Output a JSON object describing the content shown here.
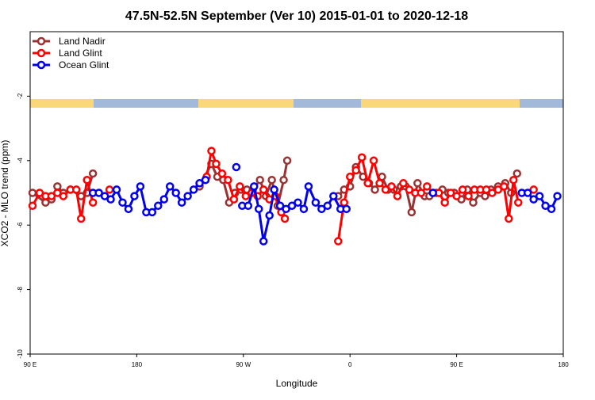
{
  "chart_data": {
    "type": "line",
    "title": "47.5N-52.5N September (Ver 10)   2015-01-01 to 2020-12-18",
    "x_label": "Longitude",
    "y_label": "XCO2 - MLO trend (ppm)",
    "xlim": [
      90,
      540
    ],
    "xticks": [
      {
        "value": 90,
        "label": "90 E"
      },
      {
        "value": 180,
        "label": "180"
      },
      {
        "value": 270,
        "label": "90 W"
      },
      {
        "value": 360,
        "label": "0"
      },
      {
        "value": 450,
        "label": "90 E"
      },
      {
        "value": 540,
        "label": "180"
      }
    ],
    "ylim": [
      -10,
      0
    ],
    "yticks": [
      -2,
      -4,
      -6,
      -8,
      -10
    ],
    "legend": "top-left",
    "series": [
      {
        "name": "Land Nadir",
        "color": "#993333",
        "x": [
          92,
          103,
          108,
          113,
          118,
          124,
          133,
          138,
          143,
          null,
          233,
          243,
          248,
          253,
          258,
          263,
          268,
          273,
          278,
          284,
          289,
          294,
          299,
          304,
          307,
          null,
          350,
          355,
          360,
          365,
          371,
          376,
          381,
          387,
          392,
          397,
          403,
          407,
          412,
          417,
          423,
          427,
          433,
          438,
          443,
          448,
          454,
          459,
          464,
          470,
          474,
          479,
          485,
          491,
          496,
          501
        ],
        "values": [
          -5.0,
          -5.3,
          -5.2,
          -4.8,
          -5.0,
          -4.9,
          -5.1,
          -5.0,
          -4.4,
          null,
          -4.8,
          -4.1,
          -4.5,
          -4.6,
          -5.3,
          -5.0,
          -4.9,
          -4.9,
          -4.9,
          -4.6,
          -5.1,
          -4.6,
          -5.4,
          -4.6,
          -4.0,
          null,
          -5.1,
          -4.9,
          -4.8,
          -4.2,
          -4.5,
          -4.7,
          -4.9,
          -4.5,
          -4.9,
          -4.9,
          -4.8,
          -4.8,
          -5.6,
          -4.7,
          -5.1,
          -5.1,
          -5.0,
          -4.9,
          -5.0,
          -5.0,
          -5.2,
          -4.9,
          -5.3,
          -5.0,
          -5.1,
          -4.9,
          -4.8,
          -4.7,
          -5.0,
          -4.4
        ]
      },
      {
        "name": "Land Glint",
        "color": "#ff0000",
        "x": [
          92,
          98,
          103,
          108,
          113,
          118,
          124,
          129,
          133,
          138,
          143,
          null,
          157,
          null,
          239,
          243,
          247,
          252,
          257,
          262,
          267,
          272,
          277,
          282,
          287,
          292,
          297,
          302,
          305,
          null,
          350,
          355,
          360,
          365,
          370,
          375,
          380,
          385,
          390,
          395,
          400,
          405,
          410,
          415,
          420,
          425,
          430,
          435,
          440,
          445,
          450,
          455,
          460,
          465,
          470,
          475,
          480,
          485,
          490,
          494,
          498,
          502,
          null,
          515
        ],
        "values": [
          -5.4,
          -5.0,
          -5.1,
          -5.1,
          -5.0,
          -5.1,
          -4.9,
          -4.9,
          -5.8,
          -4.6,
          -5.3,
          null,
          -4.9,
          null,
          -4.5,
          -3.7,
          -4.1,
          -4.4,
          -4.6,
          -5.2,
          -4.8,
          -5.1,
          -5.0,
          -5.1,
          -4.9,
          -5.2,
          -5.1,
          -5.6,
          -5.8,
          null,
          -6.5,
          -5.3,
          -4.5,
          -4.3,
          -3.9,
          -4.7,
          -4.0,
          -4.7,
          -4.9,
          -4.8,
          -5.1,
          -4.7,
          -4.9,
          -5.0,
          -5.0,
          -4.8,
          -5.0,
          -5.0,
          -5.3,
          -5.0,
          -5.1,
          -4.9,
          -5.1,
          -4.9,
          -4.9,
          -4.9,
          -5.0,
          -4.9,
          -4.8,
          -5.8,
          -4.6,
          -5.3,
          null,
          -4.9
        ]
      },
      {
        "name": "Ocean Glint",
        "color": "#0000ee",
        "x": [
          143,
          148,
          153,
          158,
          163,
          168,
          173,
          178,
          183,
          188,
          193,
          198,
          203,
          208,
          213,
          218,
          223,
          228,
          233,
          238,
          null,
          264,
          null,
          269,
          274,
          279,
          283,
          287,
          292,
          296,
          301,
          306,
          311,
          316,
          321,
          325,
          331,
          336,
          341,
          346,
          352,
          357,
          null,
          430,
          null,
          505,
          510,
          515,
          520,
          525,
          530,
          535
        ],
        "values": [
          -5.0,
          -5.0,
          -5.1,
          -5.2,
          -4.9,
          -5.3,
          -5.5,
          -5.1,
          -4.8,
          -5.6,
          -5.6,
          -5.4,
          -5.2,
          -4.8,
          -5.0,
          -5.3,
          -5.1,
          -4.9,
          -4.7,
          -4.6,
          null,
          -4.2,
          null,
          -5.4,
          -5.4,
          -4.8,
          -5.5,
          -6.5,
          -5.7,
          -4.9,
          -5.4,
          -5.5,
          -5.4,
          -5.3,
          -5.5,
          -4.8,
          -5.3,
          -5.5,
          -5.4,
          -5.1,
          -5.5,
          -5.5,
          null,
          -5.0,
          null,
          -5.0,
          -5.0,
          -5.2,
          -5.1,
          -5.4,
          -5.5,
          -5.1
        ]
      }
    ]
  }
}
